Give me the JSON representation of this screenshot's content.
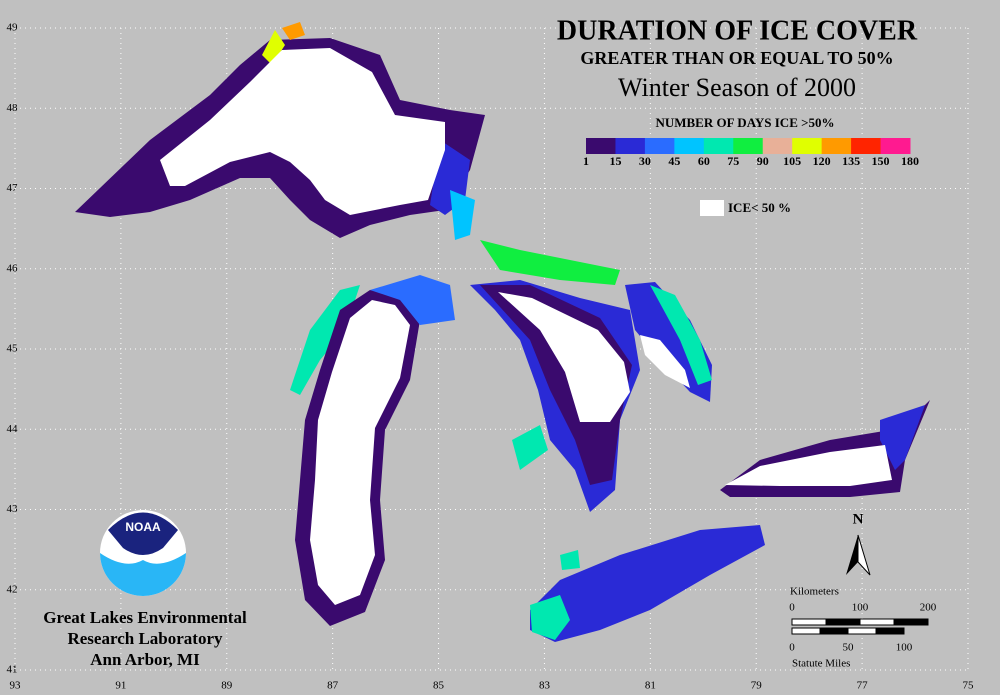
{
  "header": {
    "title": "DURATION OF ICE COVER",
    "subtitle": "GREATER THAN OR EQUAL TO 50%",
    "season": "Winter Season of 2000"
  },
  "legend": {
    "title": "NUMBER OF DAYS ICE >50%",
    "colors": [
      "#3a0a6e",
      "#2a2ad6",
      "#2a6cff",
      "#00c4ff",
      "#00e8b0",
      "#10ee40",
      "#e8b098",
      "#e0ff00",
      "#ff9a00",
      "#ff2400",
      "#ff1a90"
    ],
    "labels": [
      "1",
      "15",
      "30",
      "45",
      "60",
      "75",
      "90",
      "105",
      "120",
      "135",
      "150",
      "180"
    ],
    "ice_label": "ICE< 50 %"
  },
  "latitudes": [
    49,
    48,
    47,
    46,
    45,
    44,
    43,
    42,
    41
  ],
  "longitudes": [
    93,
    91,
    89,
    87,
    85,
    83,
    81,
    79,
    77,
    75
  ],
  "north_label": "N",
  "scale": {
    "km_title": "Kilometers",
    "km_labels": [
      "0",
      "100",
      "200"
    ],
    "mi_title": "Statute Miles",
    "mi_labels": [
      "0",
      "50",
      "100"
    ]
  },
  "logo_text": "NOAA",
  "lab": [
    "Great Lakes Environmental",
    "Research Laboratory",
    "Ann Arbor, MI"
  ]
}
